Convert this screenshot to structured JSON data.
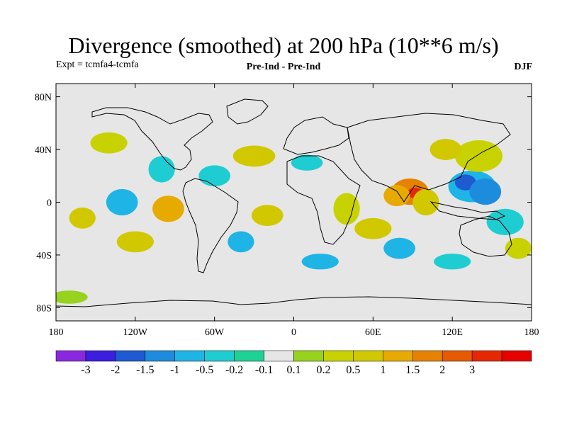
{
  "title": "Divergence (smoothed) at 200 hPa (10**6 m/s)",
  "subtitle_left": "Expt = tcmfa4-tcmfa",
  "subtitle_center": "Pre-Ind - Pre-Ind",
  "subtitle_right": "DJF",
  "chart_data": {
    "type": "heatmap",
    "title": "Divergence (smoothed) at 200 hPa (10**6 m/s)",
    "projection": "cylindrical equidistant",
    "x_range": [
      -180,
      180
    ],
    "y_range": [
      -90,
      90
    ],
    "x_ticks": [
      {
        "value": -180,
        "label": "180"
      },
      {
        "value": -120,
        "label": "120W"
      },
      {
        "value": -60,
        "label": "60W"
      },
      {
        "value": 0,
        "label": "0"
      },
      {
        "value": 60,
        "label": "60E"
      },
      {
        "value": 120,
        "label": "120E"
      },
      {
        "value": 180,
        "label": "180"
      }
    ],
    "y_ticks": [
      {
        "value": 80,
        "label": "80N"
      },
      {
        "value": 40,
        "label": "40N"
      },
      {
        "value": 0,
        "label": "0"
      },
      {
        "value": -40,
        "label": "40S"
      },
      {
        "value": -80,
        "label": "80S"
      }
    ],
    "colorbar": {
      "colors": [
        "#8a28e0",
        "#3c1ee0",
        "#1e5ad2",
        "#1e8cdc",
        "#1eb4e6",
        "#1ecdd2",
        "#1ed296",
        "#e6e6e6",
        "#96d21e",
        "#c8d200",
        "#d2c800",
        "#e6aa00",
        "#e68200",
        "#e65a00",
        "#e62800",
        "#e60000"
      ],
      "labels": [
        "-3",
        "-2",
        "-1.5",
        "-1",
        "-0.5",
        "-0.2",
        "-0.1",
        "0.1",
        "0.2",
        "0.5",
        "1",
        "1.5",
        "2",
        "3"
      ]
    },
    "blobs": [
      {
        "lon": 88,
        "lat": 8,
        "rx": 14,
        "ry": 10,
        "level": 12
      },
      {
        "lon": 92,
        "lat": 7,
        "rx": 6,
        "ry": 4,
        "level": 14
      },
      {
        "lon": 78,
        "lat": 5,
        "rx": 10,
        "ry": 8,
        "level": 11
      },
      {
        "lon": 100,
        "lat": 0,
        "rx": 10,
        "ry": 10,
        "level": 10
      },
      {
        "lon": 135,
        "lat": 12,
        "rx": 18,
        "ry": 12,
        "level": 4
      },
      {
        "lon": 130,
        "lat": 15,
        "rx": 8,
        "ry": 6,
        "level": 2
      },
      {
        "lon": 145,
        "lat": 8,
        "rx": 12,
        "ry": 10,
        "level": 3
      },
      {
        "lon": 160,
        "lat": -15,
        "rx": 14,
        "ry": 10,
        "level": 5
      },
      {
        "lon": 140,
        "lat": 35,
        "rx": 18,
        "ry": 12,
        "level": 9
      },
      {
        "lon": 115,
        "lat": 40,
        "rx": 12,
        "ry": 8,
        "level": 10
      },
      {
        "lon": 170,
        "lat": -35,
        "rx": 10,
        "ry": 8,
        "level": 9
      },
      {
        "lon": 60,
        "lat": -20,
        "rx": 14,
        "ry": 8,
        "level": 10
      },
      {
        "lon": 40,
        "lat": -5,
        "rx": 10,
        "ry": 12,
        "level": 9
      },
      {
        "lon": 10,
        "lat": 30,
        "rx": 12,
        "ry": 6,
        "level": 5
      },
      {
        "lon": -30,
        "lat": 35,
        "rx": 16,
        "ry": 8,
        "level": 10
      },
      {
        "lon": -60,
        "lat": 20,
        "rx": 12,
        "ry": 8,
        "level": 5
      },
      {
        "lon": -95,
        "lat": -5,
        "rx": 12,
        "ry": 10,
        "level": 11
      },
      {
        "lon": -100,
        "lat": 25,
        "rx": 10,
        "ry": 10,
        "level": 5
      },
      {
        "lon": -130,
        "lat": 0,
        "rx": 12,
        "ry": 10,
        "level": 4
      },
      {
        "lon": -120,
        "lat": -30,
        "rx": 14,
        "ry": 8,
        "level": 10
      },
      {
        "lon": -160,
        "lat": -12,
        "rx": 10,
        "ry": 8,
        "level": 10
      },
      {
        "lon": -140,
        "lat": 45,
        "rx": 14,
        "ry": 8,
        "level": 9
      },
      {
        "lon": -20,
        "lat": -10,
        "rx": 12,
        "ry": 8,
        "level": 10
      },
      {
        "lon": -40,
        "lat": -30,
        "rx": 10,
        "ry": 8,
        "level": 4
      },
      {
        "lon": 20,
        "lat": -45,
        "rx": 14,
        "ry": 6,
        "level": 4
      },
      {
        "lon": 80,
        "lat": -35,
        "rx": 12,
        "ry": 8,
        "level": 4
      },
      {
        "lon": 120,
        "lat": -45,
        "rx": 14,
        "ry": 6,
        "level": 5
      },
      {
        "lon": -170,
        "lat": -72,
        "rx": 14,
        "ry": 5,
        "level": 8
      }
    ]
  }
}
